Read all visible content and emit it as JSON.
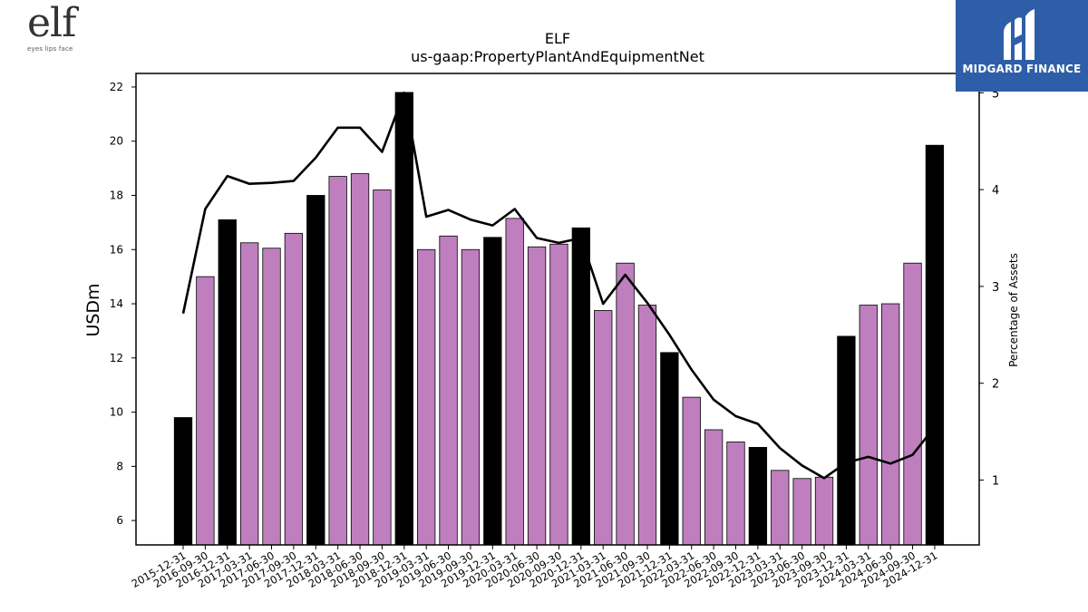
{
  "header": {
    "ticker": "ELF",
    "concept": "us-gaap:PropertyPlantAndEquipmentNet"
  },
  "logos": {
    "company_mark": "elf",
    "company_tagline": "eyes lips face",
    "brand_name": "MIDGARD FINANCE",
    "brand_color": "#2f5ea9"
  },
  "colors": {
    "annual_bar": "#000000",
    "quarter_bar": "#bf7fbf",
    "line": "#000000"
  },
  "chart_data": {
    "type": "bar",
    "title": "ELF",
    "subtitle": "us-gaap:PropertyPlantAndEquipmentNet",
    "ylabel": "USDm",
    "y2label": "Percentage of Assets",
    "ylim": [
      5.1,
      22.5
    ],
    "y2lim": [
      0.33,
      5.2
    ],
    "yticks": [
      6,
      8,
      10,
      12,
      14,
      16,
      18,
      20,
      22
    ],
    "y2ticks": [
      1,
      2,
      3,
      4,
      5
    ],
    "categories": [
      "2015-12-31",
      "2016-09-30",
      "2016-12-31",
      "2017-03-31",
      "2017-06-30",
      "2017-09-30",
      "2017-12-31",
      "2018-03-31",
      "2018-06-30",
      "2018-09-30",
      "2018-12-31",
      "2019-03-31",
      "2019-06-30",
      "2019-09-30",
      "2019-12-31",
      "2020-03-31",
      "2020-06-30",
      "2020-09-30",
      "2020-12-31",
      "2021-03-31",
      "2021-06-30",
      "2021-09-30",
      "2021-12-31",
      "2022-03-31",
      "2022-06-30",
      "2022-09-30",
      "2022-12-31",
      "2023-03-31",
      "2023-06-30",
      "2023-09-30",
      "2023-12-31",
      "2024-03-31",
      "2024-06-30",
      "2024-09-30",
      "2024-12-31"
    ],
    "series": [
      {
        "type": "bar",
        "axis": "left",
        "values": [
          9.8,
          15.0,
          17.1,
          16.25,
          16.05,
          16.6,
          18.0,
          18.7,
          18.8,
          18.2,
          21.8,
          16.0,
          16.5,
          16.0,
          16.45,
          17.15,
          16.1,
          16.2,
          16.8,
          13.75,
          15.5,
          13.95,
          12.2,
          10.55,
          9.35,
          8.9,
          8.7,
          7.85,
          7.55,
          7.6,
          12.8,
          13.95,
          14.0,
          15.5,
          19.85
        ],
        "annual": [
          true,
          false,
          true,
          false,
          false,
          false,
          true,
          false,
          false,
          false,
          true,
          false,
          false,
          false,
          true,
          false,
          false,
          false,
          true,
          false,
          false,
          false,
          true,
          false,
          false,
          false,
          true,
          false,
          false,
          false,
          true,
          false,
          false,
          false,
          true
        ]
      },
      {
        "type": "line",
        "axis": "right",
        "values": [
          2.72,
          3.8,
          4.14,
          4.06,
          4.07,
          4.09,
          4.33,
          4.64,
          4.64,
          4.39,
          5.0,
          3.72,
          3.79,
          3.69,
          3.63,
          3.8,
          3.5,
          3.45,
          3.5,
          2.82,
          3.12,
          2.83,
          2.5,
          2.14,
          1.83,
          1.66,
          1.58,
          1.33,
          1.15,
          1.02,
          1.18,
          1.24,
          1.17,
          1.26,
          1.55
        ]
      }
    ]
  }
}
